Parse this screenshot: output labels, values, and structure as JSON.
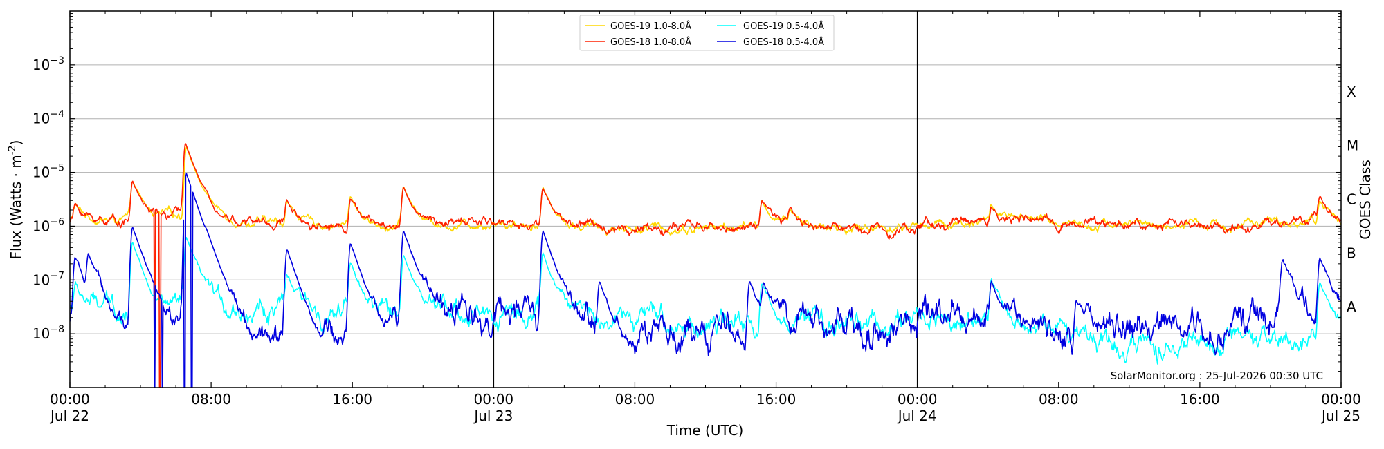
{
  "chart_data": {
    "type": "line",
    "xlabel": "Time (UTC)",
    "ylabel": "Flux (Watts · m",
    "ylabel_sup": "-2",
    "ylabel_tail": ")",
    "y2label": "GOES Class",
    "yscale": "log",
    "xlim_hours": [
      0,
      72
    ],
    "ylim": [
      1e-09,
      0.01
    ],
    "grid": "horizontal",
    "legend_position": "top-center",
    "x_ticks": [
      {
        "hours": 0,
        "label": "00:00",
        "sublabel": "Jul 22"
      },
      {
        "hours": 8,
        "label": "08:00",
        "sublabel": ""
      },
      {
        "hours": 16,
        "label": "16:00",
        "sublabel": ""
      },
      {
        "hours": 24,
        "label": "00:00",
        "sublabel": "Jul 23"
      },
      {
        "hours": 32,
        "label": "08:00",
        "sublabel": ""
      },
      {
        "hours": 40,
        "label": "16:00",
        "sublabel": ""
      },
      {
        "hours": 48,
        "label": "00:00",
        "sublabel": "Jul 24"
      },
      {
        "hours": 56,
        "label": "08:00",
        "sublabel": ""
      },
      {
        "hours": 64,
        "label": "16:00",
        "sublabel": ""
      },
      {
        "hours": 72,
        "label": "00:00",
        "sublabel": "Jul 25"
      }
    ],
    "y_ticks": [
      {
        "exp": -8,
        "value": 1e-08
      },
      {
        "exp": -7,
        "value": 1e-07
      },
      {
        "exp": -6,
        "value": 1e-06
      },
      {
        "exp": -5,
        "value": 1e-05
      },
      {
        "exp": -4,
        "value": 0.0001
      },
      {
        "exp": -3,
        "value": 0.001
      }
    ],
    "day_boundaries_hours": [
      24,
      48
    ],
    "goes_classes": [
      {
        "label": "X",
        "value": 0.000316
      },
      {
        "label": "M",
        "value": 3.16e-05
      },
      {
        "label": "C",
        "value": 3.16e-06
      },
      {
        "label": "B",
        "value": 3.16e-07
      },
      {
        "label": "A",
        "value": 3.16e-08
      }
    ],
    "series": [
      {
        "name": "GOES-19 1.0-8.0Å",
        "color": "#ffd700",
        "baseline": [
          [
            0,
            1.3e-06
          ],
          [
            4,
            1.3e-06
          ],
          [
            6.6,
            1.7e-06
          ],
          [
            8,
            1.5e-06
          ],
          [
            10,
            1.2e-06
          ],
          [
            14,
            1.1e-06
          ],
          [
            18,
            1e-06
          ],
          [
            22,
            1.1e-06
          ],
          [
            24,
            1.2e-06
          ],
          [
            28,
            1e-06
          ],
          [
            34,
            9e-07
          ],
          [
            38,
            9.5e-07
          ],
          [
            40,
            1.1e-06
          ],
          [
            44,
            9e-07
          ],
          [
            48,
            1e-06
          ],
          [
            52,
            1.3e-06
          ],
          [
            56,
            1.2e-06
          ],
          [
            60,
            1.1e-06
          ],
          [
            64,
            1e-06
          ],
          [
            68,
            1.1e-06
          ],
          [
            71,
            1.3e-06
          ],
          [
            72,
            1.2e-06
          ]
        ],
        "peaks": [
          [
            0.3,
            2.5e-06
          ],
          [
            3.55,
            6.8e-06
          ],
          [
            6.6,
            3e-05
          ],
          [
            7.8,
            2e-06
          ],
          [
            12.3,
            3e-06
          ],
          [
            15.9,
            3.5e-06
          ],
          [
            18.9,
            5.4e-06
          ],
          [
            26.8,
            5.2e-06
          ],
          [
            39.2,
            2.8e-06
          ],
          [
            40.8,
            2e-06
          ],
          [
            52.2,
            2.4e-06
          ],
          [
            70.8,
            3e-06
          ]
        ],
        "noise": 0.04,
        "width": 1.6
      },
      {
        "name": "GOES-18 1.0-8.0Å",
        "color": "#ff2000",
        "baseline": [
          [
            0,
            1.3e-06
          ],
          [
            4,
            1.3e-06
          ],
          [
            6.6,
            1.7e-06
          ],
          [
            8,
            1.5e-06
          ],
          [
            10,
            1.2e-06
          ],
          [
            14,
            1.1e-06
          ],
          [
            18,
            1e-06
          ],
          [
            22,
            1.1e-06
          ],
          [
            24,
            1.2e-06
          ],
          [
            28,
            1e-06
          ],
          [
            34,
            9e-07
          ],
          [
            38,
            9.5e-07
          ],
          [
            40,
            1.1e-06
          ],
          [
            44,
            9e-07
          ],
          [
            48,
            1e-06
          ],
          [
            52,
            1.3e-06
          ],
          [
            56,
            1.2e-06
          ],
          [
            60,
            1.1e-06
          ],
          [
            64,
            1e-06
          ],
          [
            68,
            1.1e-06
          ],
          [
            71,
            1.3e-06
          ],
          [
            72,
            1.2e-06
          ]
        ],
        "peaks": [
          [
            0.3,
            2.5e-06
          ],
          [
            3.55,
            6.8e-06
          ],
          [
            6.55,
            3.5e-05
          ],
          [
            7.8,
            2e-06
          ],
          [
            12.3,
            3e-06
          ],
          [
            15.9,
            3.5e-06
          ],
          [
            18.9,
            5.4e-06
          ],
          [
            26.8,
            5.2e-06
          ],
          [
            39.2,
            2.8e-06
          ],
          [
            40.8,
            2e-06
          ],
          [
            52.2,
            2.4e-06
          ],
          [
            70.8,
            3e-06
          ]
        ],
        "dropouts": [
          4.8,
          5.1
        ],
        "noise": 0.045,
        "width": 1.6
      },
      {
        "name": "GOES-19 0.5-4.0Å",
        "color": "#00ffff",
        "baseline": [
          [
            0,
            3e-08
          ],
          [
            4,
            3e-08
          ],
          [
            8,
            3.2e-08
          ],
          [
            12,
            2.6e-08
          ],
          [
            18,
            2.2e-08
          ],
          [
            24,
            2.4e-08
          ],
          [
            28,
            2.6e-08
          ],
          [
            34,
            1.6e-08
          ],
          [
            38,
            1.4e-08
          ],
          [
            42,
            1.4e-08
          ],
          [
            46,
            1.5e-08
          ],
          [
            48,
            2e-08
          ],
          [
            52,
            1.5e-08
          ],
          [
            56,
            1.5e-08
          ],
          [
            60,
            6e-09
          ],
          [
            64,
            5.5e-09
          ],
          [
            68,
            5.5e-09
          ],
          [
            70,
            8e-09
          ],
          [
            72,
            1.2e-08
          ]
        ],
        "peaks": [
          [
            0.3,
            8e-08
          ],
          [
            3.55,
            5e-07
          ],
          [
            6.6,
            6e-07
          ],
          [
            12.3,
            1.2e-07
          ],
          [
            15.9,
            2e-07
          ],
          [
            18.9,
            3e-07
          ],
          [
            26.8,
            3e-07
          ],
          [
            39.2,
            9e-08
          ],
          [
            52.2,
            9e-08
          ],
          [
            70.8,
            9e-08
          ]
        ],
        "noise": 0.1,
        "width": 1.5
      },
      {
        "name": "GOES-18 0.5-4.0Å",
        "color": "#0000e0",
        "baseline": [
          [
            0,
            1.5e-08
          ],
          [
            4,
            1.4e-08
          ],
          [
            8,
            1.2e-08
          ],
          [
            12,
            1e-08
          ],
          [
            16,
            8e-09
          ],
          [
            18,
            1.4e-08
          ],
          [
            20,
            2.5e-08
          ],
          [
            24,
            2.4e-08
          ],
          [
            28,
            1.5e-08
          ],
          [
            32,
            9e-09
          ],
          [
            36,
            8e-09
          ],
          [
            40,
            1.3e-08
          ],
          [
            44,
            1.5e-08
          ],
          [
            48,
            1.6e-08
          ],
          [
            52,
            1.3e-08
          ],
          [
            56,
            1.2e-08
          ],
          [
            60,
            1.4e-08
          ],
          [
            64,
            1.3e-08
          ],
          [
            68,
            2e-08
          ],
          [
            70,
            3e-08
          ],
          [
            72,
            2e-08
          ]
        ],
        "peaks": [
          [
            0.3,
            2.6e-07
          ],
          [
            1.05,
            2.6e-07
          ],
          [
            3.55,
            9.5e-07
          ],
          [
            6.6,
            9.5e-06
          ],
          [
            7.75,
            1.3e-07
          ],
          [
            12.3,
            3.6e-07
          ],
          [
            15.9,
            4.8e-07
          ],
          [
            18.9,
            8e-07
          ],
          [
            26.8,
            8e-07
          ],
          [
            30.0,
            9e-08
          ],
          [
            38.5,
            1e-07
          ],
          [
            39.3,
            8e-08
          ],
          [
            52.2,
            1e-07
          ],
          [
            57.0,
            5e-08
          ],
          [
            68.7,
            2.3e-07
          ],
          [
            70.8,
            2.6e-07
          ]
        ],
        "dropouts": [
          4.8,
          5.25,
          6.5,
          6.9
        ],
        "noise": 0.14,
        "width": 1.6
      }
    ]
  },
  "footer_credit": "SolarMonitor.org : 25-Jul-2026 00:30 UTC"
}
